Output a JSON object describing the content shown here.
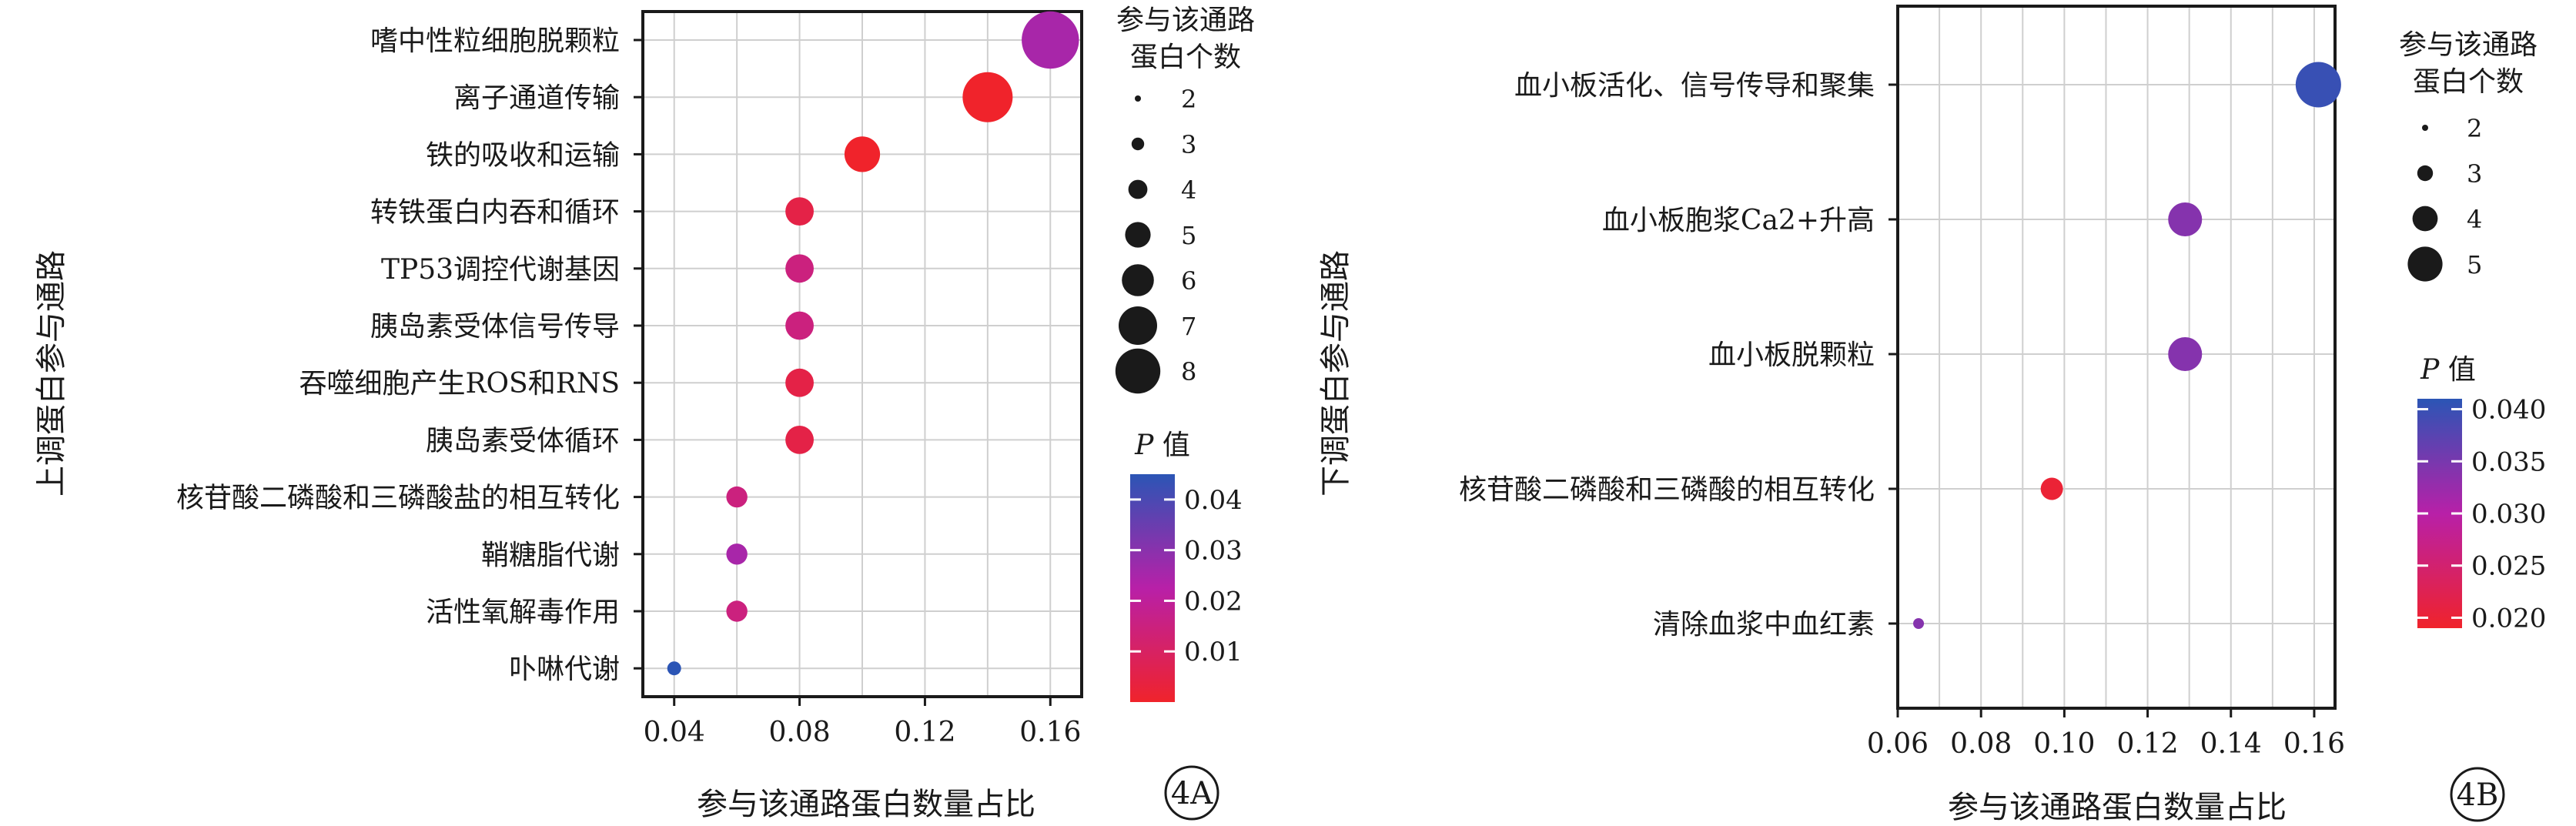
{
  "panels": [
    {
      "id": "4A",
      "ylabel": "上调蛋白参与通路",
      "xlabel": "参与该通路蛋白数量占比",
      "size_legend_title": [
        "参与该通路",
        "蛋白个数"
      ],
      "size_legend_values": [
        "2",
        "3",
        "4",
        "5",
        "6",
        "7",
        "8"
      ],
      "color_legend_title_italic": "P",
      "color_legend_title_rest": " 值",
      "color_legend_ticks": [
        "0.04",
        "0.03",
        "0.02",
        "0.01"
      ]
    },
    {
      "id": "4B",
      "ylabel": "下调蛋白参与通路",
      "xlabel": "参与该通路蛋白数量占比",
      "size_legend_title": [
        "参与该通路",
        "蛋白个数"
      ],
      "size_legend_values": [
        "2",
        "3",
        "4",
        "5"
      ],
      "color_legend_title_italic": "P",
      "color_legend_title_rest": " 值",
      "color_legend_ticks": [
        "0.040",
        "0.035",
        "0.030",
        "0.025",
        "0.020"
      ]
    }
  ],
  "chart_data": [
    {
      "type": "scatter",
      "title": "",
      "xlabel": "参与该通路蛋白数量占比",
      "ylabel": "上调蛋白参与通路",
      "xlim": [
        0.03,
        0.17
      ],
      "x_ticks": [
        "0.04",
        "0.08",
        "0.12",
        "0.16"
      ],
      "x_tick_values": [
        0.04,
        0.08,
        0.12,
        0.16
      ],
      "categories": [
        "嗜中性粒细胞脱颗粒",
        "离子通道传输",
        "铁的吸收和运输",
        "转铁蛋白内吞和循环",
        "TP53调控代谢基因",
        "胰岛素受体信号传导",
        "吞噬细胞产生ROS和RNS",
        "胰岛素受体循环",
        "核苷酸二磷酸和三磷酸盐的相互转化",
        "鞘糖脂代谢",
        "活性氧解毒作用",
        "卟啉代谢"
      ],
      "x": [
        0.16,
        0.14,
        0.1,
        0.08,
        0.08,
        0.08,
        0.08,
        0.08,
        0.06,
        0.06,
        0.06,
        0.04
      ],
      "count": [
        8,
        7,
        5,
        4,
        4,
        4,
        4,
        4,
        3,
        3,
        3,
        2
      ],
      "p_value": [
        0.025,
        0.0,
        0.0,
        0.005,
        0.015,
        0.015,
        0.005,
        0.005,
        0.015,
        0.025,
        0.015,
        0.045
      ],
      "size_legend": [
        2,
        3,
        4,
        5,
        6,
        7,
        8
      ],
      "color_range": [
        0.0,
        0.045
      ],
      "color_low": "#f0232b",
      "color_mid": "#b820a8",
      "color_high": "#2b55b5",
      "grid": true,
      "legend_position": "right"
    },
    {
      "type": "scatter",
      "title": "",
      "xlabel": "参与该通路蛋白数量占比",
      "ylabel": "下调蛋白参与通路",
      "xlim": [
        0.06,
        0.165
      ],
      "x_ticks": [
        "0.06",
        "0.08",
        "0.10",
        "0.12",
        "0.14",
        "0.16"
      ],
      "x_tick_values": [
        0.06,
        0.08,
        0.1,
        0.12,
        0.14,
        0.16
      ],
      "categories": [
        "血小板活化、信号传导和聚集",
        "血小板胞浆Ca2+升高",
        "血小板脱颗粒",
        "核苷酸二磷酸和三磷酸的相互转化",
        "清除血浆中血红素"
      ],
      "x": [
        0.161,
        0.129,
        0.129,
        0.097,
        0.065
      ],
      "count": [
        5,
        4,
        4,
        3,
        2
      ],
      "p_value": [
        0.04,
        0.034,
        0.034,
        0.02,
        0.034
      ],
      "size_legend": [
        2,
        3,
        4,
        5
      ],
      "color_range": [
        0.019,
        0.041
      ],
      "color_low": "#f0232b",
      "color_mid": "#b820a8",
      "color_high": "#2b55b5",
      "grid": true,
      "legend_position": "right"
    }
  ]
}
